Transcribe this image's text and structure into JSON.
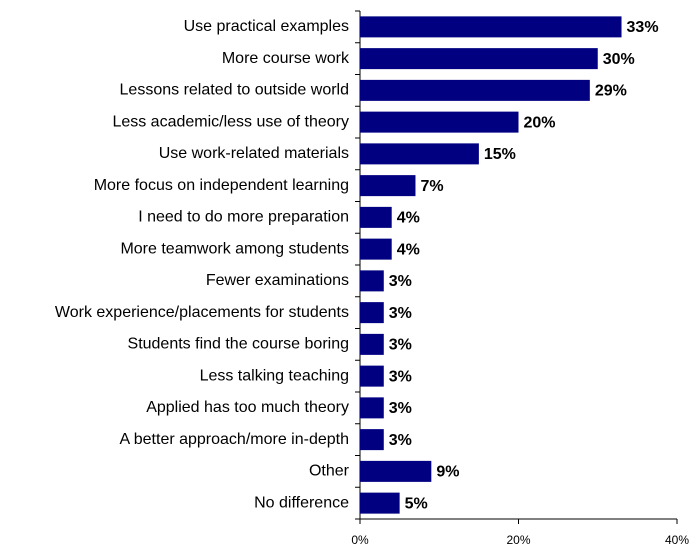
{
  "chart_data": {
    "type": "hbar",
    "categories": [
      "Use practical examples",
      "More course work",
      "Lessons related to outside world",
      "Less academic/less use of theory",
      "Use work-related materials",
      "More focus on independent learning",
      "I need to do more preparation",
      "More teamwork among students",
      "Fewer examinations",
      "Work experience/placements for students",
      "Students find the course boring",
      "Less talking teaching",
      "Applied has too much theory",
      "A better approach/more in-depth",
      "Other",
      "No difference"
    ],
    "values": [
      33,
      30,
      29,
      20,
      15,
      7,
      4,
      4,
      3,
      3,
      3,
      3,
      3,
      3,
      9,
      5
    ],
    "value_labels": [
      "33%",
      "30%",
      "29%",
      "20%",
      "15%",
      "7%",
      "4%",
      "4%",
      "3%",
      "3%",
      "3%",
      "3%",
      "3%",
      "3%",
      "9%",
      "5%"
    ],
    "color": "#000080",
    "xlim": [
      0,
      40
    ],
    "xticks": [
      {
        "value": 0,
        "label": "0%"
      },
      {
        "value": 20,
        "label": "20%"
      },
      {
        "value": 40,
        "label": "40%"
      }
    ],
    "grid": false
  }
}
